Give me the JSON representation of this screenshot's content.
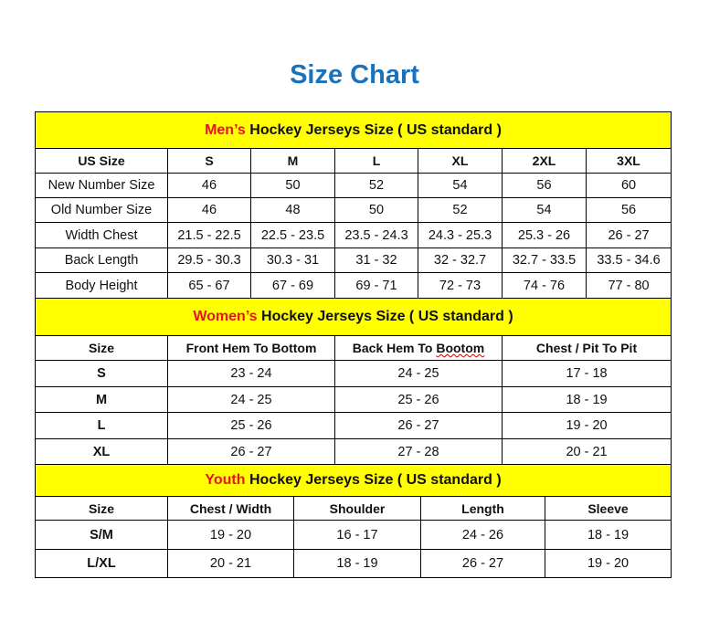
{
  "title": "Size Chart",
  "colors": {
    "title": "#1a72bb",
    "banner": "#ffff00",
    "highlight": "#e8141b"
  },
  "men": {
    "banner_highlight": "Men’s",
    "banner_rest": " Hockey Jerseys Size ( US standard )",
    "headers": [
      "US Size",
      "S",
      "M",
      "L",
      "XL",
      "2XL",
      "3XL"
    ],
    "rows": [
      [
        "New Number Size",
        "46",
        "50",
        "52",
        "54",
        "56",
        "60"
      ],
      [
        "Old Number Size",
        "46",
        "48",
        "50",
        "52",
        "54",
        "56"
      ],
      [
        "Width Chest",
        "21.5 - 22.5",
        "22.5 - 23.5",
        "23.5 - 24.3",
        "24.3 - 25.3",
        "25.3 - 26",
        "26 - 27"
      ],
      [
        "Back Length",
        "29.5 - 30.3",
        "30.3 - 31",
        "31 - 32",
        "32 - 32.7",
        "32.7 - 33.5",
        "33.5 - 34.6"
      ],
      [
        "Body Height",
        "65 - 67",
        "67 - 69",
        "69 - 71",
        "72 - 73",
        "74 - 76",
        "77 - 80"
      ]
    ]
  },
  "women": {
    "banner_highlight": "Women’s",
    "banner_rest": " Hockey Jerseys Size ( US standard )",
    "headers": [
      "Size",
      "Front Hem To Bottom",
      "Back Hem To ",
      "Bootom",
      "Chest / Pit To Pit"
    ],
    "rows": [
      [
        "S",
        "23 - 24",
        "24 - 25",
        "17 - 18"
      ],
      [
        "M",
        "24 - 25",
        "25 - 26",
        "18 - 19"
      ],
      [
        "L",
        "25 - 26",
        "26 - 27",
        "19 - 20"
      ],
      [
        "XL",
        "26 - 27",
        "27 - 28",
        "20 - 21"
      ]
    ]
  },
  "youth": {
    "banner_highlight": "Youth",
    "banner_rest": " Hockey Jerseys Size ( US standard )",
    "headers": [
      "Size",
      "Chest / Width",
      "Shoulder",
      "Length",
      "Sleeve"
    ],
    "rows": [
      [
        "S/M",
        "19 - 20",
        "16 - 17",
        "24 - 26",
        "18 - 19"
      ],
      [
        "L/XL",
        "20 - 21",
        "18 - 19",
        "26 - 27",
        "19 - 20"
      ]
    ]
  }
}
